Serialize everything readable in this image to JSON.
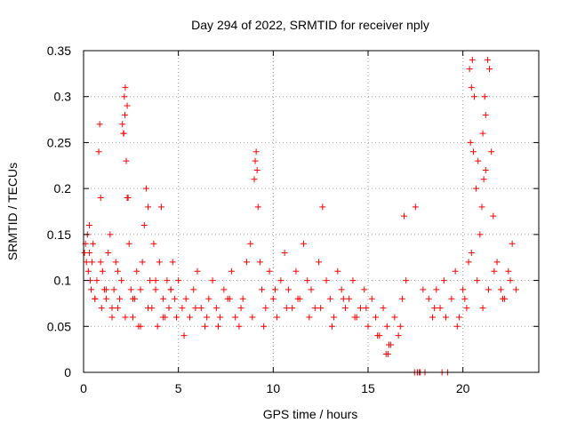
{
  "chart_data": {
    "type": "scatter",
    "title": "Day 294 of 2022, SRMTID for receiver nply",
    "xlabel": "GPS time / hours",
    "ylabel": "SRMTID / TECUs",
    "xlim": [
      0,
      24
    ],
    "ylim": [
      0,
      0.35
    ],
    "x_ticks": [
      0,
      5,
      10,
      15,
      20
    ],
    "x_tick_labels": [
      "0",
      "5",
      "10",
      "15",
      "20"
    ],
    "y_ticks": [
      0,
      0.05,
      0.1,
      0.15,
      0.2,
      0.25,
      0.3,
      0.35
    ],
    "y_tick_labels": [
      "0",
      "0.05",
      "0.1",
      "0.15",
      "0.2",
      "0.25",
      "0.3",
      "0.35"
    ],
    "grid": true,
    "marker": "plus",
    "marker_color": "#ff0000",
    "series": [
      {
        "name": "SRMTID",
        "x": [
          0.05,
          0.1,
          0.15,
          0.2,
          0.25,
          0.3,
          0.35,
          0.4,
          0.45,
          0.5,
          0.6,
          0.7,
          0.8,
          0.85,
          0.9,
          0.95,
          1.0,
          1.1,
          1.2,
          1.3,
          1.4,
          1.5,
          1.6,
          1.7,
          1.8,
          1.9,
          2.0,
          2.1,
          2.15,
          2.2,
          2.25,
          2.3,
          2.4,
          2.5,
          2.6,
          2.7,
          2.8,
          2.9,
          3.0,
          3.1,
          3.2,
          3.3,
          3.4,
          3.5,
          3.6,
          3.7,
          3.8,
          3.9,
          4.0,
          4.1,
          4.2,
          4.3,
          4.4,
          4.5,
          4.6,
          4.7,
          4.8,
          4.9,
          5.0,
          5.2,
          5.4,
          5.6,
          5.8,
          6.0,
          6.2,
          6.4,
          6.6,
          6.8,
          7.0,
          7.2,
          7.4,
          7.6,
          7.8,
          8.0,
          8.2,
          8.4,
          8.6,
          8.8,
          9.0,
          9.1,
          9.2,
          9.3,
          9.4,
          9.6,
          9.8,
          10.0,
          10.2,
          10.4,
          10.6,
          10.8,
          11.0,
          11.2,
          11.4,
          11.6,
          11.8,
          12.0,
          12.2,
          12.4,
          12.6,
          12.8,
          13.0,
          13.2,
          13.4,
          13.6,
          13.8,
          14.0,
          14.2,
          14.4,
          14.6,
          14.8,
          15.0,
          15.2,
          15.4,
          15.6,
          15.8,
          16.0,
          16.2,
          16.4,
          16.6,
          16.8,
          17.0,
          17.5,
          17.7,
          18.0,
          18.2,
          18.4,
          18.6,
          18.8,
          19.0,
          19.2,
          19.4,
          19.6,
          19.8,
          20.0,
          20.2,
          20.3,
          20.4,
          20.5,
          20.6,
          20.7,
          20.8,
          20.9,
          21.0,
          21.1,
          21.2,
          21.3,
          21.4,
          21.5,
          21.6,
          21.8,
          22.0,
          22.2,
          22.4,
          22.6,
          22.8,
          0.3,
          0.6,
          0.9,
          1.2,
          1.5,
          1.8,
          2.2,
          2.6,
          3.0,
          3.4,
          3.8,
          4.2,
          4.6,
          5.3,
          5.9,
          6.5,
          7.1,
          7.7,
          8.3,
          8.9,
          9.5,
          10.1,
          10.7,
          11.3,
          11.9,
          12.5,
          13.1,
          13.7,
          14.3,
          14.9,
          15.5,
          16.1,
          16.7,
          17.9,
          18.5,
          19.1,
          19.7,
          20.1,
          20.45,
          20.75,
          21.05,
          21.35,
          21.65,
          22.1,
          22.5,
          9.05,
          9.15,
          2.05,
          2.12,
          2.18,
          2.3,
          2.35,
          21.05,
          21.15,
          21.2,
          20.35,
          20.45,
          20.55,
          16.9,
          17.45,
          17.6,
          17.75,
          18.9,
          15.95,
          16.05
        ],
        "y": [
          0.13,
          0.14,
          0.12,
          0.15,
          0.11,
          0.13,
          0.1,
          0.09,
          0.12,
          0.14,
          0.08,
          0.1,
          0.24,
          0.27,
          0.19,
          0.07,
          0.11,
          0.09,
          0.08,
          0.13,
          0.15,
          0.06,
          0.09,
          0.12,
          0.07,
          0.08,
          0.1,
          0.26,
          0.3,
          0.31,
          0.23,
          0.19,
          0.14,
          0.09,
          0.06,
          0.08,
          0.11,
          0.05,
          0.09,
          0.12,
          0.16,
          0.2,
          0.18,
          0.1,
          0.07,
          0.14,
          0.09,
          0.05,
          0.12,
          0.18,
          0.08,
          0.06,
          0.1,
          0.07,
          0.09,
          0.12,
          0.08,
          0.06,
          0.1,
          0.07,
          0.08,
          0.06,
          0.09,
          0.11,
          0.07,
          0.05,
          0.08,
          0.1,
          0.07,
          0.06,
          0.09,
          0.08,
          0.11,
          0.06,
          0.05,
          0.08,
          0.12,
          0.14,
          0.21,
          0.24,
          0.18,
          0.12,
          0.09,
          0.07,
          0.11,
          0.08,
          0.06,
          0.1,
          0.13,
          0.09,
          0.07,
          0.11,
          0.08,
          0.14,
          0.1,
          0.09,
          0.07,
          0.12,
          0.18,
          0.1,
          0.08,
          0.06,
          0.11,
          0.09,
          0.07,
          0.08,
          0.1,
          0.06,
          0.07,
          0.09,
          0.05,
          0.08,
          0.06,
          0.04,
          0.07,
          0.05,
          0.03,
          0.06,
          0.04,
          0.08,
          0.1,
          0.18,
          0.0,
          0.0,
          0.08,
          0.06,
          0.09,
          0.07,
          0.1,
          0.0,
          0.08,
          0.11,
          0.06,
          0.09,
          0.07,
          0.12,
          0.25,
          0.34,
          0.3,
          0.2,
          0.23,
          0.15,
          0.18,
          0.21,
          0.28,
          0.34,
          0.33,
          0.24,
          0.17,
          0.12,
          0.09,
          0.08,
          0.11,
          0.14,
          0.09,
          0.16,
          0.08,
          0.12,
          0.09,
          0.07,
          0.11,
          0.06,
          0.08,
          0.05,
          0.07,
          0.1,
          0.06,
          0.09,
          0.04,
          0.07,
          0.06,
          0.05,
          0.08,
          0.07,
          0.06,
          0.05,
          0.09,
          0.07,
          0.08,
          0.06,
          0.07,
          0.05,
          0.08,
          0.06,
          0.07,
          0.04,
          0.03,
          0.05,
          0.09,
          0.07,
          0.06,
          0.05,
          0.08,
          0.13,
          0.1,
          0.07,
          0.09,
          0.11,
          0.08,
          0.1,
          0.23,
          0.22,
          0.27,
          0.26,
          0.28,
          0.29,
          0.19,
          0.26,
          0.3,
          0.22,
          0.33,
          0.31,
          0.24,
          0.17,
          0.0,
          0.0,
          0.0,
          0.0,
          0.02,
          0.02
        ]
      }
    ]
  }
}
